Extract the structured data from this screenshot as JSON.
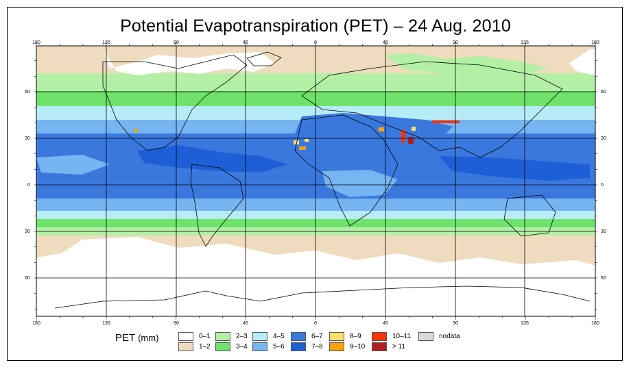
{
  "title": "Potential Evapotranspiration (PET) – 24 Aug. 2010",
  "axes": {
    "lon_ticks": [
      "180",
      "135",
      "90",
      "45",
      "0",
      "45",
      "90",
      "135",
      "180"
    ],
    "lat_ticks": [
      "60",
      "30",
      "0",
      "30",
      "60"
    ]
  },
  "legend": {
    "title": "PET",
    "unit": "(mm)",
    "items": [
      {
        "label": "0–1",
        "color": "#ffffff"
      },
      {
        "label": "1–2",
        "color": "#efdcbf"
      },
      {
        "label": "2–3",
        "color": "#b3f0a5"
      },
      {
        "label": "3–4",
        "color": "#6ee26b"
      },
      {
        "label": "4–5",
        "color": "#b6ecf7"
      },
      {
        "label": "5–6",
        "color": "#76b4f2"
      },
      {
        "label": "6–7",
        "color": "#3a78de"
      },
      {
        "label": "7–8",
        "color": "#1e5ed6"
      },
      {
        "label": "8–9",
        "color": "#ffdf6b"
      },
      {
        "label": "9–10",
        "color": "#ffa200"
      },
      {
        "label": "10–11",
        "color": "#ff3300"
      },
      {
        "label": "> 11",
        "color": "#b21f1f"
      },
      {
        "label": "nodata",
        "color": "#d9d9d9"
      }
    ]
  }
}
